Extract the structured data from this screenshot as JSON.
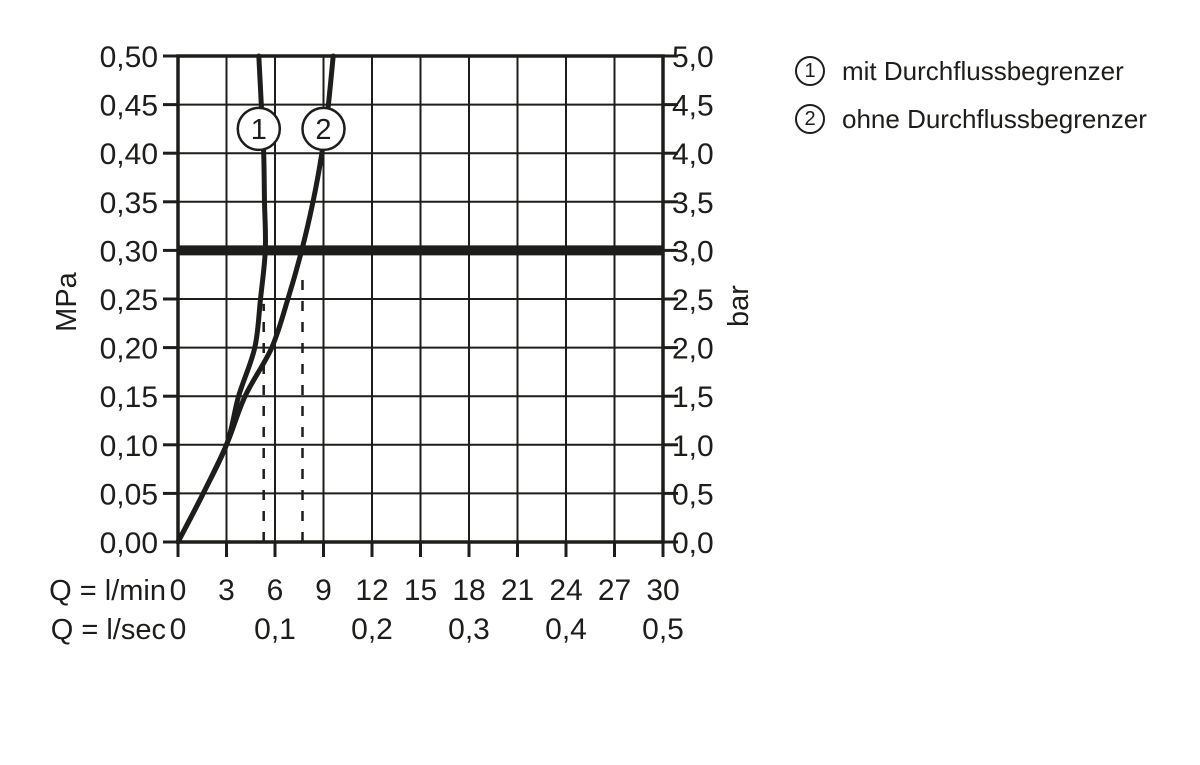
{
  "colors": {
    "ink": "#1d1d1b",
    "background": "#ffffff"
  },
  "legend": {
    "items": [
      {
        "symbol": "1",
        "label": "mit Durchflussbegrenzer"
      },
      {
        "symbol": "2",
        "label": "ohne Durchflussbegrenzer"
      }
    ]
  },
  "chart_data": {
    "type": "line",
    "title": "",
    "xlabel_row1": "Q = l/min",
    "xlabel_row2": "Q = l/sec",
    "ylabel_left": "MPa",
    "ylabel_right": "bar",
    "xlim": [
      0,
      30
    ],
    "ylim_mpa": [
      0,
      0.5
    ],
    "ylim_bar": [
      0,
      5
    ],
    "grid": true,
    "x_ticks_lmin": {
      "values": [
        0,
        3,
        6,
        9,
        12,
        15,
        18,
        21,
        24,
        27,
        30
      ],
      "labels": [
        "0",
        "3",
        "6",
        "9",
        "12",
        "15",
        "18",
        "21",
        "24",
        "27",
        "30"
      ]
    },
    "x_ticks_lsec": {
      "values": [
        0,
        6,
        12,
        18,
        24,
        30
      ],
      "labels": [
        "0",
        "0,1",
        "0,2",
        "0,3",
        "0,4",
        "0,5"
      ]
    },
    "y_ticks_mpa": {
      "values": [
        0,
        0.05,
        0.1,
        0.15,
        0.2,
        0.25,
        0.3,
        0.35,
        0.4,
        0.45,
        0.5
      ],
      "labels": [
        "0,00",
        "0,05",
        "0,10",
        "0,15",
        "0,20",
        "0,25",
        "0,30",
        "0,35",
        "0,40",
        "0,45",
        "0,50"
      ]
    },
    "y_ticks_bar": {
      "labels": [
        "0,0",
        "0,5",
        "1,0",
        "1,5",
        "2,0",
        "2,5",
        "3,0",
        "3,5",
        "4,0",
        "4,5",
        "5,0"
      ]
    },
    "reference_line_mpa": 0.3,
    "dashed_guides": [
      {
        "q_lmin": 5.3,
        "p_top_mpa": 0.245
      },
      {
        "q_lmin": 7.7,
        "p_top_mpa": 0.28
      }
    ],
    "series": [
      {
        "name": "mit Durchflussbegrenzer",
        "marker": "1",
        "marker_at": {
          "q_lmin": 5.0,
          "p_mpa": 0.425
        },
        "points_q_p": [
          [
            0,
            0
          ],
          [
            1.5,
            0.048
          ],
          [
            3.0,
            0.1
          ],
          [
            3.75,
            0.15
          ],
          [
            4.75,
            0.2
          ],
          [
            5.1,
            0.25
          ],
          [
            5.4,
            0.3
          ],
          [
            5.35,
            0.35
          ],
          [
            5.3,
            0.4
          ],
          [
            5.15,
            0.45
          ],
          [
            5.0,
            0.5
          ]
        ]
      },
      {
        "name": "ohne Durchflussbegrenzer",
        "marker": "2",
        "marker_at": {
          "q_lmin": 9.0,
          "p_mpa": 0.425
        },
        "points_q_p": [
          [
            0,
            0
          ],
          [
            1.5,
            0.048
          ],
          [
            3.0,
            0.1
          ],
          [
            4.15,
            0.15
          ],
          [
            5.8,
            0.2
          ],
          [
            6.8,
            0.25
          ],
          [
            7.65,
            0.3
          ],
          [
            8.35,
            0.35
          ],
          [
            8.9,
            0.4
          ],
          [
            9.3,
            0.45
          ],
          [
            9.6,
            0.5
          ]
        ]
      }
    ]
  }
}
